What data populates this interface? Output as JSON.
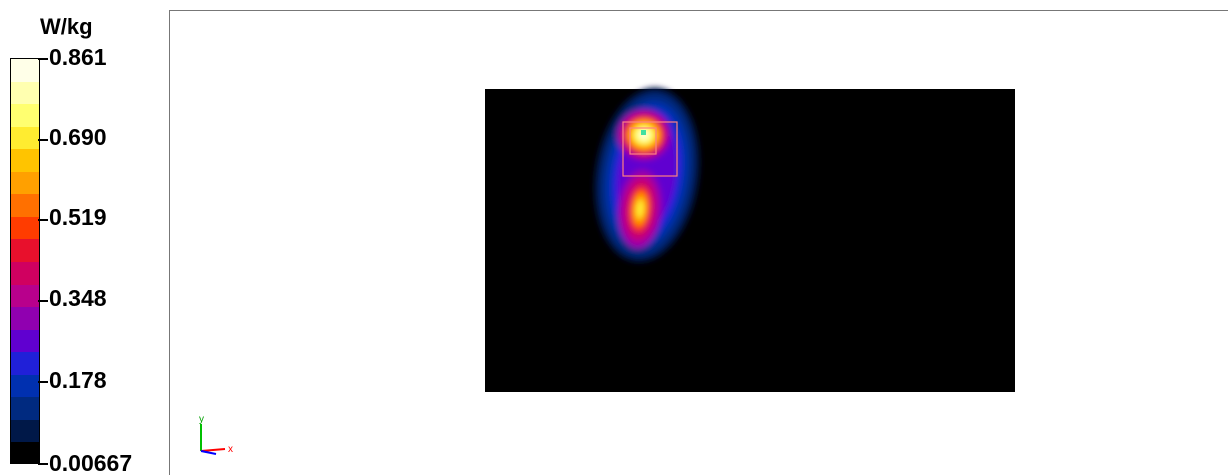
{
  "chart_data": {
    "type": "heatmap",
    "title": "",
    "colorbar": {
      "unit": "W/kg",
      "min": 0.00667,
      "max": 0.861,
      "tick_labels": [
        "0.861",
        "0.690",
        "0.519",
        "0.348",
        "0.178",
        "0.00667"
      ],
      "colors_top_to_bottom": [
        "#ffffe8",
        "#ffffb0",
        "#ffff70",
        "#ffec30",
        "#ffc400",
        "#ffa000",
        "#ff7000",
        "#ff3c00",
        "#e8102c",
        "#d00060",
        "#b8008c",
        "#9000b0",
        "#6000d0",
        "#2020d8",
        "#0030b0",
        "#002a80",
        "#001848",
        "#000000"
      ]
    },
    "axes_triad": {
      "y_label": "y",
      "x_label": "x"
    },
    "hotspot": {
      "peak_value": 0.861
    }
  }
}
